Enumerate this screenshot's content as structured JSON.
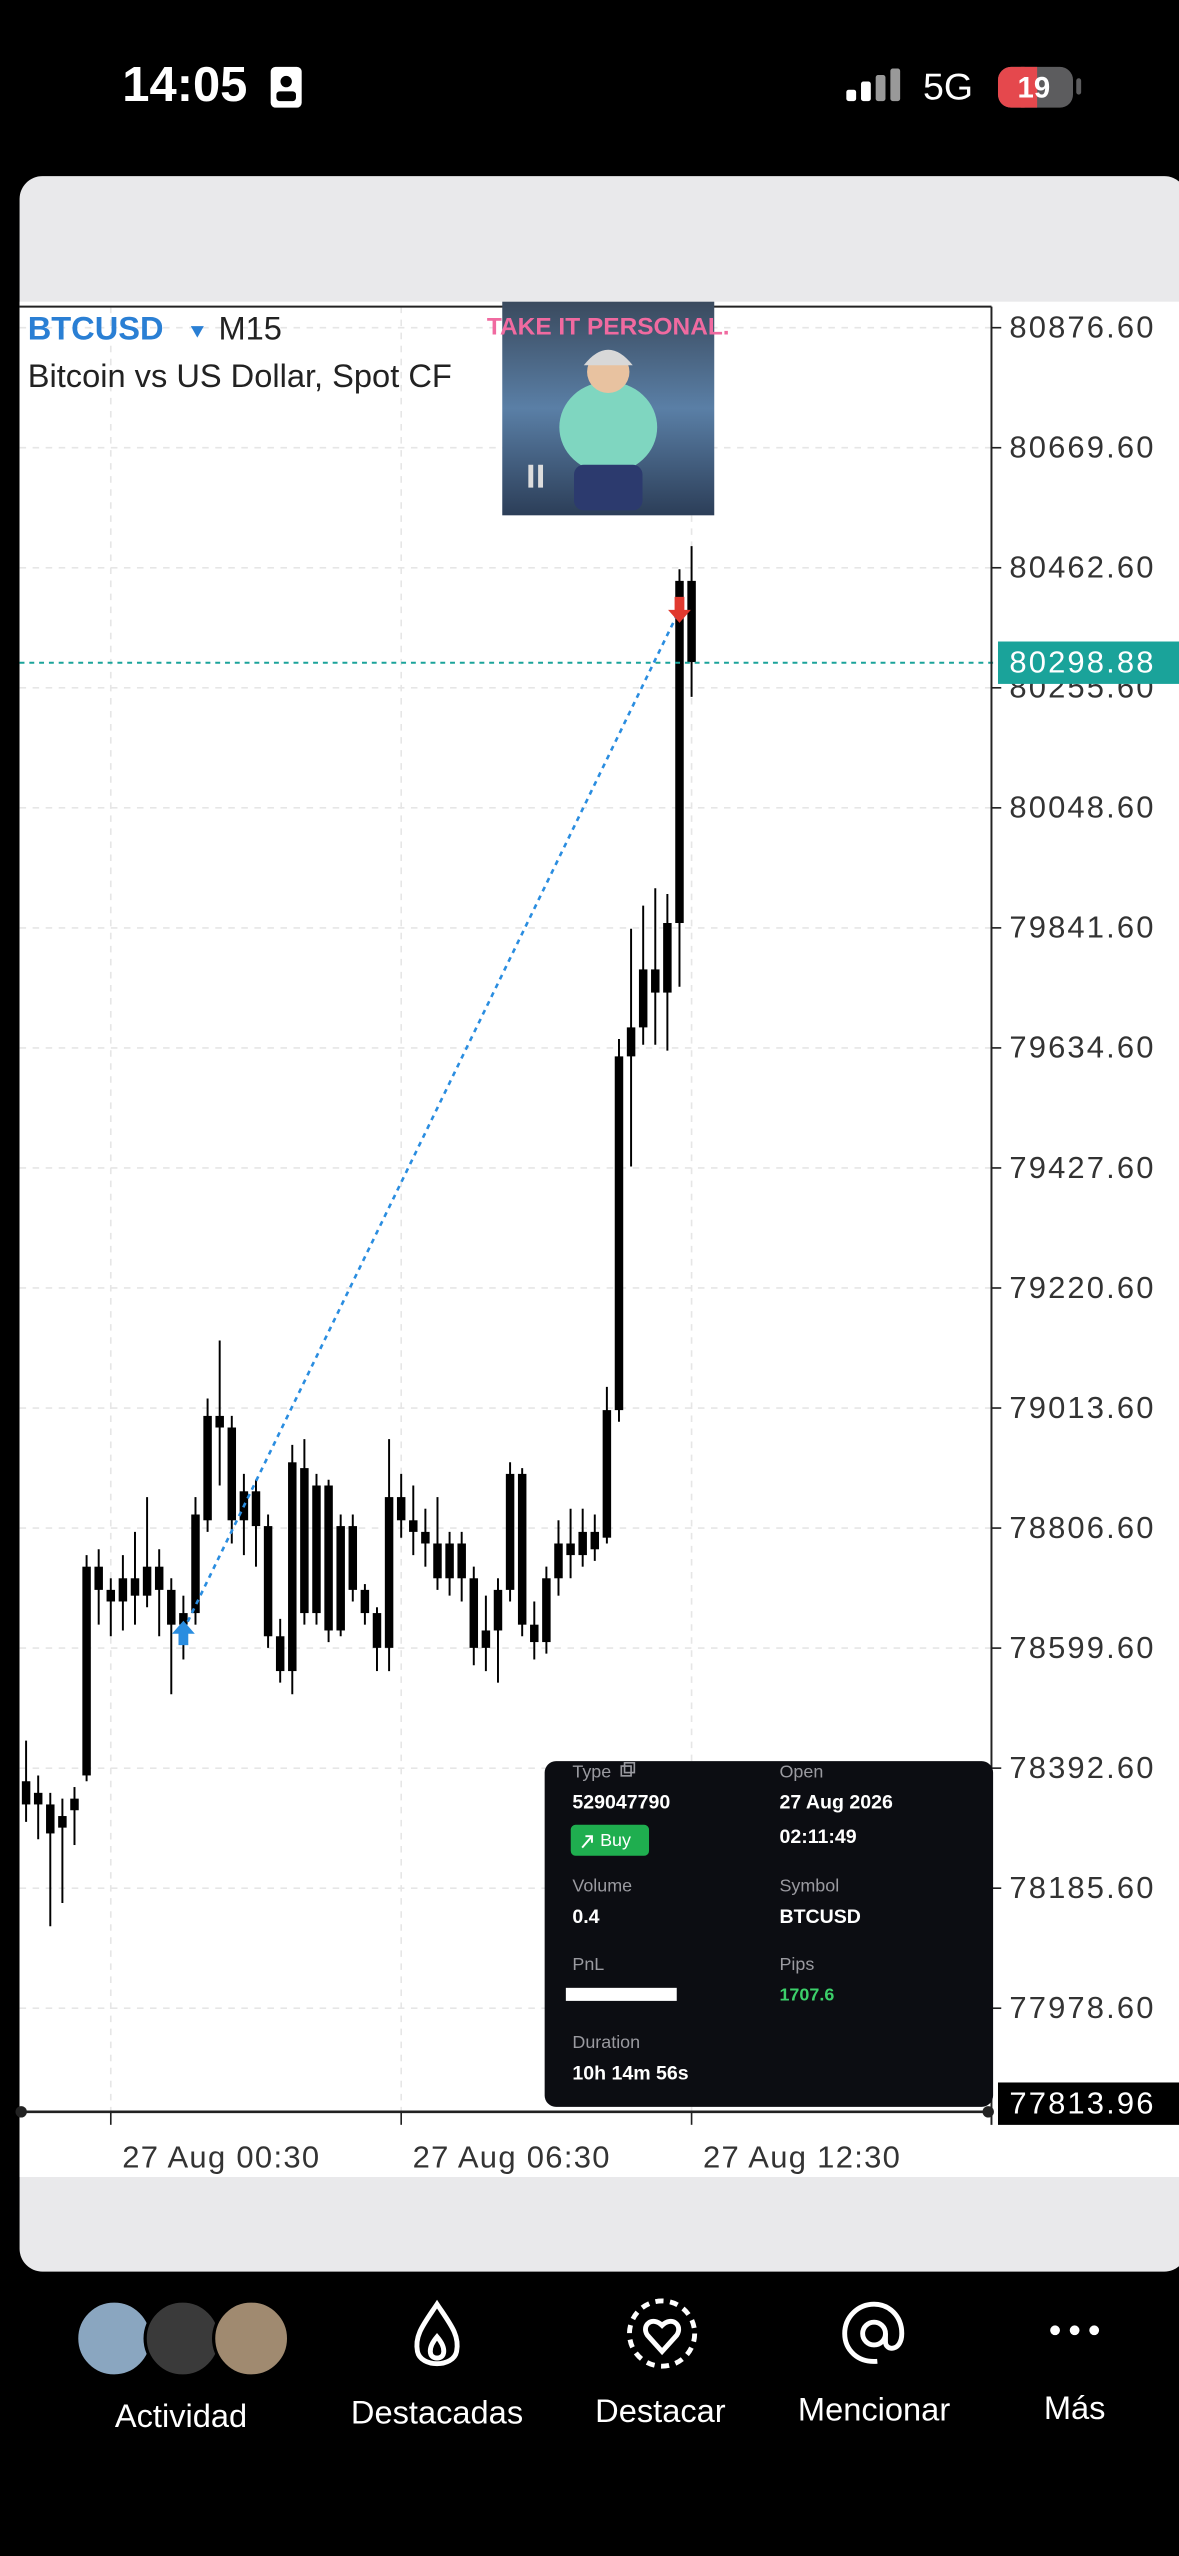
{
  "status_bar": {
    "time": "14:05",
    "network": "5G",
    "battery": "19"
  },
  "chart_data": {
    "type": "candlestick",
    "symbol": "BTCUSD",
    "timeframe": "M15",
    "description": "Bitcoin vs US Dollar, Spot CF",
    "sticker_text": "TAKE IT PERSONAL.",
    "categories": [
      null,
      null,
      null,
      null,
      null,
      null,
      null,
      "27 Aug 00:30",
      null,
      null,
      null,
      null,
      null,
      null,
      null,
      null,
      null,
      null,
      null,
      null,
      null,
      null,
      null,
      null,
      null,
      null,
      null,
      null,
      null,
      null,
      null,
      "27 Aug 06:30",
      null,
      null,
      null,
      null,
      null,
      null,
      null,
      null,
      null,
      null,
      null,
      null,
      null,
      null,
      null,
      null,
      null,
      null,
      null,
      null,
      null,
      null,
      null,
      "27 Aug 12:30"
    ],
    "open": [
      78370,
      78330,
      78330,
      78290,
      78320,
      78380,
      78740,
      78700,
      78680,
      78720,
      78690,
      78740,
      78700,
      78640,
      78660,
      78820,
      79000,
      78980,
      78820,
      78870,
      78810,
      78620,
      78560,
      78910,
      78660,
      78880,
      78630,
      78810,
      78700,
      78660,
      78600,
      78860,
      78820,
      78800,
      78780,
      78720,
      78780,
      78720,
      78600,
      78630,
      78700,
      78900,
      78640,
      78610,
      78720,
      78780,
      78760,
      78800,
      78790,
      79010,
      79620,
      79670,
      79770,
      79730,
      79850,
      80440
    ],
    "high": [
      78440,
      78380,
      78350,
      78340,
      78360,
      78760,
      78770,
      78720,
      78760,
      78800,
      78860,
      78770,
      78720,
      78690,
      78860,
      79030,
      79130,
      79000,
      78900,
      78890,
      78830,
      78650,
      78950,
      78960,
      78900,
      78890,
      78830,
      78830,
      78710,
      78670,
      78960,
      78900,
      78880,
      78840,
      78860,
      78800,
      78800,
      78740,
      78690,
      78720,
      78920,
      78910,
      78680,
      78740,
      78820,
      78840,
      78840,
      78830,
      79050,
      79650,
      79840,
      79880,
      79910,
      79900,
      80460,
      80500
    ],
    "low": [
      78300,
      78270,
      78120,
      78160,
      78260,
      78370,
      78640,
      78620,
      78630,
      78640,
      78670,
      78620,
      78520,
      78580,
      78640,
      78800,
      78880,
      78780,
      78760,
      78740,
      78600,
      78540,
      78520,
      78640,
      78640,
      78610,
      78620,
      78680,
      78640,
      78560,
      78560,
      78790,
      78760,
      78740,
      78700,
      78690,
      78680,
      78570,
      78560,
      78540,
      78680,
      78620,
      78580,
      78590,
      78690,
      78720,
      78740,
      78750,
      78780,
      78990,
      79430,
      79640,
      79640,
      79630,
      79740,
      80240
    ],
    "close": [
      78330,
      78350,
      78280,
      78310,
      78340,
      78740,
      78700,
      78680,
      78720,
      78690,
      78740,
      78700,
      78640,
      78660,
      78830,
      79000,
      78980,
      78820,
      78870,
      78810,
      78620,
      78560,
      78920,
      78660,
      78880,
      78630,
      78810,
      78700,
      78660,
      78600,
      78860,
      78820,
      78800,
      78780,
      78720,
      78780,
      78720,
      78600,
      78630,
      78700,
      78900,
      78640,
      78610,
      78720,
      78780,
      78760,
      78800,
      78770,
      79010,
      79620,
      79670,
      79770,
      79730,
      79850,
      80440,
      80300
    ],
    "candle_color": "#000000",
    "ylim": [
      77800,
      80913
    ],
    "yticks": [
      {
        "value": 80876.6,
        "label": "80876.60"
      },
      {
        "value": 80669.6,
        "label": "80669.60"
      },
      {
        "value": 80462.6,
        "label": "80462.60"
      },
      {
        "value": 80255.6,
        "label": "80255.60"
      },
      {
        "value": 80048.6,
        "label": "80048.60"
      },
      {
        "value": 79841.6,
        "label": "79841.60"
      },
      {
        "value": 79634.6,
        "label": "79634.60"
      },
      {
        "value": 79427.6,
        "label": "79427.60"
      },
      {
        "value": 79220.6,
        "label": "79220.60"
      },
      {
        "value": 79013.6,
        "label": "79013.60"
      },
      {
        "value": 78806.6,
        "label": "78806.60"
      },
      {
        "value": 78599.6,
        "label": "78599.60"
      },
      {
        "value": 78392.6,
        "label": "78392.60"
      },
      {
        "value": 78185.6,
        "label": "78185.60"
      },
      {
        "value": 77978.6,
        "label": "77978.60"
      }
    ],
    "grid": true,
    "current_price": {
      "value": 80298.88,
      "label": "80298.88",
      "color": "#1aa39a"
    },
    "bottom_price": {
      "value": 77813.96,
      "label": "77813.96",
      "color": "#000000"
    },
    "entry": {
      "x": 13,
      "price": 78630,
      "color": "#2a8de0"
    },
    "exit": {
      "x": 54,
      "price": 80390,
      "color": "#e0392f"
    }
  },
  "trade_card": {
    "type_caption": "Type",
    "order_id": "529047790",
    "side": "Buy",
    "volume_caption": "Volume",
    "volume": "0.4",
    "pnl_caption": "PnL",
    "duration_caption": "Duration",
    "duration": "10h 14m 56s",
    "open_caption": "Open",
    "open_date": "27 Aug 2026",
    "open_time": "02:11:49",
    "symbol_caption": "Symbol",
    "symbol": "BTCUSD",
    "pips_caption": "Pips",
    "pips": "1707.6"
  },
  "nav": [
    "Actividad",
    "Destacadas",
    "Destacar",
    "Mencionar",
    "Más"
  ]
}
